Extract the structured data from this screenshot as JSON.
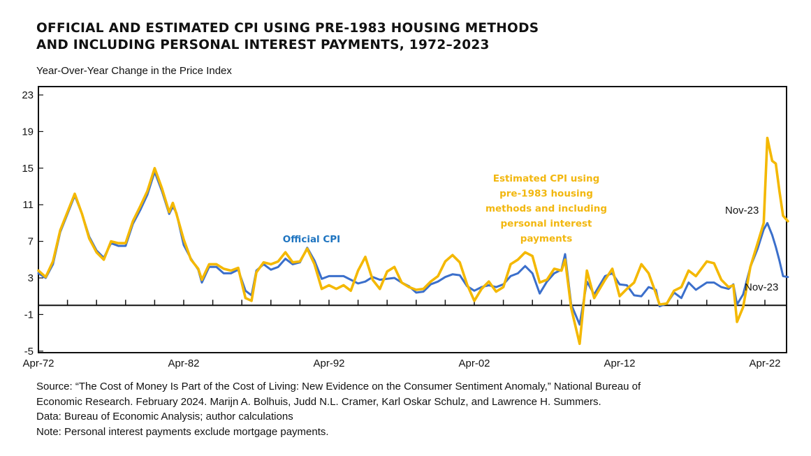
{
  "header": {
    "title_line1": "OFFICIAL AND ESTIMATED CPI USING PRE-1983 HOUSING METHODS",
    "title_line2": "AND INCLUDING PERSONAL INTEREST PAYMENTS, 1972–2023",
    "subtitle": "Year-Over-Year Change in the Price Index"
  },
  "notes": [
    "Source: “The Cost of Money Is Part of the Cost of Living: New Evidence on the Consumer Sentiment Anomaly,” National Bureau of",
    "Economic Research. February 2024. Marijn A. Bolhuis, Judd N.L. Cramer, Karl Oskar Schulz, and Lawrence H. Summers.",
    "Data: Bureau of Economic Analysis; author calculations",
    "Note: Personal interest payments exclude mortgage payments."
  ],
  "chart_data": {
    "type": "line",
    "title": "OFFICIAL AND ESTIMATED CPI USING PRE-1983 HOUSING METHODS AND INCLUDING PERSONAL INTEREST PAYMENTS, 1972–2023",
    "ylabel": "Year-Over-Year Change in the Price Index",
    "xlabel": "",
    "ylim": [
      -5,
      24
    ],
    "yticks": [
      23,
      19,
      15,
      11,
      7,
      3,
      -1,
      -5
    ],
    "xticks": [
      "Apr-72",
      "Apr-82",
      "Apr-92",
      "Apr-02",
      "Apr-12",
      "Apr-22"
    ],
    "xlim": [
      "1972-04",
      "1973-12"
    ],
    "grid": false,
    "legend": "inline labels",
    "colors": {
      "official": "#3b6fcb",
      "estimated": "#f4b800",
      "official_label": "#1e74c0",
      "estimated_label": "#f2b70f"
    },
    "x": [
      "1972-04",
      "1972-10",
      "1973-04",
      "1973-10",
      "1974-04",
      "1974-10",
      "1975-04",
      "1975-10",
      "1976-04",
      "1976-10",
      "1977-04",
      "1977-10",
      "1978-04",
      "1978-10",
      "1979-04",
      "1979-10",
      "1980-04",
      "1980-10",
      "1981-04",
      "1981-07",
      "1981-10",
      "1982-04",
      "1982-10",
      "1983-04",
      "1983-07",
      "1984-01",
      "1984-07",
      "1985-01",
      "1985-07",
      "1986-01",
      "1986-07",
      "1986-12",
      "1987-04",
      "1987-10",
      "1988-04",
      "1988-10",
      "1989-04",
      "1989-10",
      "1990-04",
      "1990-10",
      "1991-04",
      "1991-10",
      "1992-04",
      "1992-10",
      "1993-04",
      "1993-10",
      "1994-04",
      "1994-10",
      "1995-04",
      "1995-10",
      "1996-04",
      "1996-10",
      "1997-04",
      "1997-10",
      "1998-04",
      "1998-10",
      "1999-04",
      "1999-10",
      "2000-04",
      "2000-10",
      "2001-04",
      "2001-10",
      "2002-04",
      "2002-10",
      "2003-04",
      "2003-10",
      "2004-04",
      "2004-10",
      "2005-04",
      "2005-10",
      "2006-04",
      "2006-10",
      "2007-04",
      "2007-10",
      "2008-04",
      "2008-07",
      "2008-12",
      "2009-07",
      "2010-01",
      "2010-07",
      "2011-04",
      "2011-10",
      "2012-04",
      "2012-10",
      "2013-04",
      "2013-10",
      "2014-04",
      "2014-10",
      "2015-01",
      "2015-07",
      "2016-01",
      "2016-07",
      "2017-01",
      "2017-07",
      "2018-04",
      "2018-10",
      "2019-04",
      "2019-10",
      "2020-02",
      "2020-05",
      "2020-10",
      "2021-04",
      "2021-10",
      "2022-03",
      "2022-06",
      "2022-10",
      "2023-01",
      "2023-04",
      "2023-07",
      "2023-11"
    ],
    "series": [
      {
        "name": "Official CPI",
        "values": [
          3.5,
          3.0,
          4.5,
          8.0,
          10.0,
          12.0,
          10.0,
          7.5,
          6.0,
          5.2,
          6.8,
          6.5,
          6.5,
          8.9,
          10.4,
          12.1,
          14.6,
          12.5,
          10.0,
          10.8,
          10.1,
          6.6,
          5.1,
          3.9,
          2.5,
          4.2,
          4.2,
          3.5,
          3.5,
          3.9,
          1.6,
          1.1,
          3.8,
          4.5,
          3.9,
          4.2,
          5.1,
          4.5,
          4.7,
          6.3,
          4.9,
          2.9,
          3.2,
          3.2,
          3.2,
          2.8,
          2.4,
          2.6,
          3.1,
          2.8,
          2.9,
          3.0,
          2.5,
          2.1,
          1.4,
          1.5,
          2.3,
          2.6,
          3.1,
          3.4,
          3.3,
          2.1,
          1.6,
          2.0,
          2.2,
          2.0,
          2.3,
          3.2,
          3.5,
          4.3,
          3.5,
          1.3,
          2.6,
          3.5,
          3.9,
          5.6,
          0.1,
          -2.1,
          2.6,
          1.2,
          3.2,
          3.5,
          2.3,
          2.2,
          1.1,
          1.0,
          2.0,
          1.7,
          -0.1,
          0.2,
          1.4,
          0.8,
          2.5,
          1.7,
          2.5,
          2.5,
          2.0,
          1.8,
          2.3,
          0.1,
          1.2,
          4.2,
          6.2,
          8.3,
          9.0,
          7.7,
          6.4,
          4.9,
          3.2,
          3.1
        ]
      },
      {
        "name": "Estimated CPI using pre-1983 housing methods and including personal interest payments",
        "values": [
          3.8,
          3.1,
          4.8,
          8.2,
          10.2,
          12.2,
          10.0,
          7.3,
          5.8,
          5.0,
          7.0,
          6.8,
          6.8,
          9.2,
          10.8,
          12.5,
          15.0,
          12.8,
          10.2,
          11.2,
          10.0,
          7.2,
          5.0,
          4.0,
          2.8,
          4.5,
          4.5,
          4.0,
          3.8,
          4.1,
          0.8,
          0.5,
          3.6,
          4.7,
          4.5,
          4.8,
          5.8,
          4.7,
          4.8,
          6.2,
          4.5,
          1.8,
          2.2,
          1.8,
          2.2,
          1.6,
          3.8,
          5.3,
          2.8,
          1.8,
          3.7,
          4.2,
          2.5,
          2.0,
          1.7,
          1.8,
          2.6,
          3.2,
          4.8,
          5.5,
          4.7,
          2.3,
          0.5,
          1.8,
          2.6,
          1.5,
          2.0,
          4.5,
          5.0,
          5.8,
          5.4,
          2.5,
          2.8,
          4.0,
          3.8,
          5.0,
          -0.3,
          -4.2,
          3.8,
          0.8,
          2.8,
          4.0,
          1.0,
          1.8,
          2.5,
          4.5,
          3.5,
          1.3,
          0.1,
          0.2,
          1.6,
          2.0,
          3.8,
          3.2,
          4.8,
          4.6,
          2.8,
          2.0,
          2.2,
          -1.8,
          -0.2,
          4.2,
          6.8,
          9.0,
          18.3,
          15.8,
          15.5,
          12.5,
          9.8,
          9.2
        ]
      }
    ],
    "annotations": {
      "official_label": "Official CPI",
      "estimated_label": [
        "Estimated CPI using",
        "pre-1983 housing",
        "methods and including",
        "personal interest",
        "payments"
      ],
      "official_end": "Nov-23",
      "estimated_end": "Nov-23"
    }
  }
}
